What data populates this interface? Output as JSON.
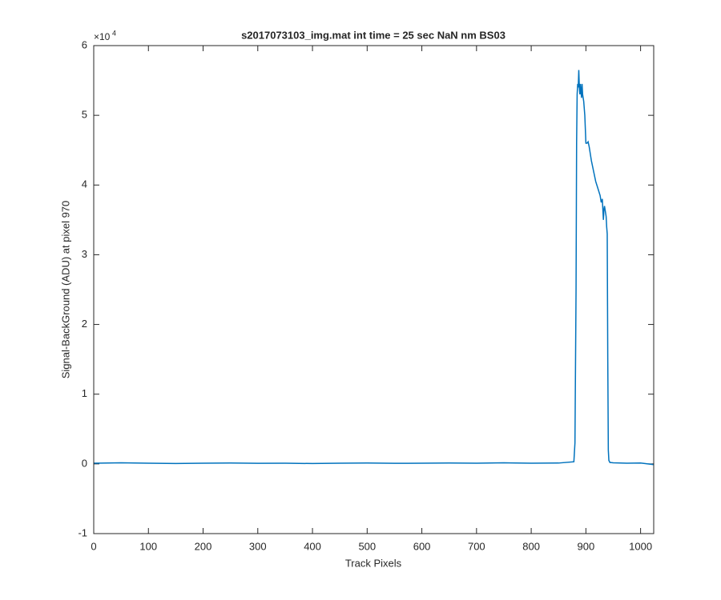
{
  "chart_data": {
    "type": "line",
    "title": "s2017073103_img.mat int time = 25 sec  NaN nm BS03",
    "x_label": "Track Pixels",
    "y_label": "Signal-BackGround (ADU) at pixel 970",
    "y_scale_label": "×10",
    "y_scale_power": "4",
    "x": [
      0,
      50,
      100,
      150,
      200,
      250,
      300,
      350,
      400,
      450,
      500,
      550,
      600,
      650,
      700,
      750,
      800,
      850,
      878,
      880,
      882,
      883,
      884,
      885,
      886,
      887,
      888,
      889,
      890,
      891,
      892,
      893,
      894,
      896,
      898,
      900,
      902,
      904,
      906,
      908,
      910,
      914,
      918,
      922,
      926,
      928,
      930,
      932,
      933,
      934,
      936,
      937,
      938,
      939,
      940,
      941,
      942,
      944,
      950,
      975,
      1000,
      1024
    ],
    "series": [
      {
        "name": "signal",
        "color": "#0072bd",
        "values": [
          0.01,
          0.015,
          0.01,
          0.005,
          0.01,
          0.012,
          0.008,
          0.01,
          0.005,
          0.01,
          0.012,
          0.008,
          0.01,
          0.012,
          0.01,
          0.015,
          0.01,
          0.012,
          0.03,
          0.3,
          2.5,
          4.6,
          5.3,
          5.45,
          5.4,
          5.65,
          5.4,
          5.3,
          5.45,
          5.35,
          5.25,
          5.45,
          5.3,
          5.2,
          5.0,
          4.6,
          4.6,
          4.62,
          4.55,
          4.45,
          4.35,
          4.2,
          4.05,
          3.95,
          3.85,
          3.75,
          3.8,
          3.5,
          3.65,
          3.7,
          3.6,
          3.55,
          3.4,
          3.3,
          1.5,
          0.2,
          0.05,
          0.02,
          0.015,
          0.01,
          0.012,
          -0.01
        ]
      }
    ],
    "xlim": [
      0,
      1024
    ],
    "ylim": [
      -1,
      6
    ],
    "xticks": [
      0,
      100,
      200,
      300,
      400,
      500,
      600,
      700,
      800,
      900,
      1000
    ],
    "yticks": [
      -1,
      0,
      1,
      2,
      3,
      4,
      5,
      6
    ],
    "grid": false
  }
}
